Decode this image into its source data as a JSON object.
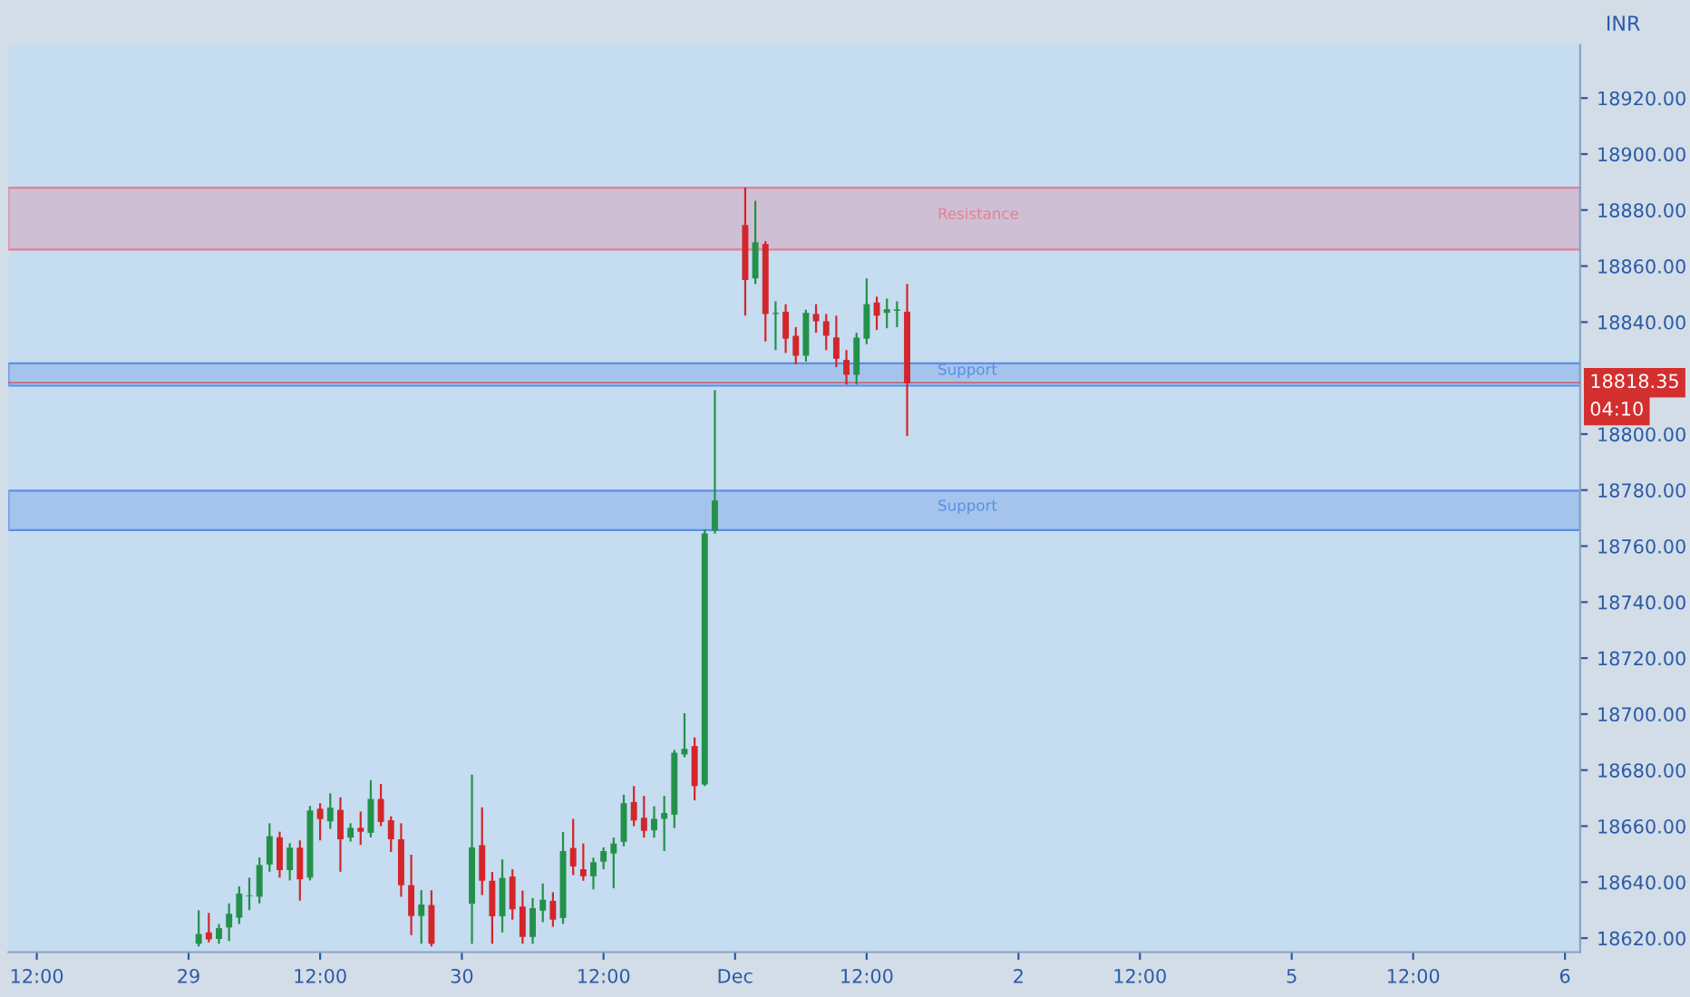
{
  "chart_data": {
    "type": "candlestick",
    "ylabel": "INR",
    "categories": [
      "12:00",
      null,
      null,
      null,
      null,
      null,
      null,
      null,
      null,
      null,
      null,
      null,
      null,
      null,
      null,
      "29",
      null,
      null,
      null,
      null,
      null,
      null,
      null,
      null,
      null,
      null,
      null,
      null,
      "12:00",
      null,
      null,
      null,
      null,
      null,
      null,
      null,
      null,
      null,
      null,
      null,
      null,
      null,
      "30",
      null,
      null,
      null,
      null,
      null,
      null,
      null,
      null,
      null,
      null,
      null,
      null,
      null,
      "12:00",
      null,
      null,
      null,
      null,
      null,
      null,
      null,
      null,
      null,
      null,
      null,
      null,
      "Dec",
      null,
      null,
      null,
      null,
      null,
      null,
      null,
      null,
      null,
      null,
      null,
      null,
      "12:00",
      null,
      null,
      null,
      null,
      null,
      null,
      null,
      null,
      null,
      null,
      null,
      null,
      null,
      null,
      "2",
      null,
      null,
      null,
      null,
      null,
      null,
      null,
      null,
      null,
      null,
      null,
      "12:00",
      null,
      null,
      null,
      null,
      null,
      null,
      null,
      null,
      null,
      null,
      null,
      null,
      null,
      null,
      "5",
      null,
      null,
      null,
      null,
      null,
      null,
      null,
      null,
      null,
      null,
      null,
      "12:00",
      null,
      null,
      null,
      null,
      null,
      null,
      null,
      null,
      null,
      null,
      null,
      null,
      null,
      null,
      "6"
    ],
    "ohlc": [
      null,
      null,
      null,
      null,
      null,
      null,
      null,
      null,
      null,
      null,
      null,
      null,
      null,
      null,
      null,
      null,
      [
        18618,
        18630,
        18617,
        18621.5
      ],
      [
        18622,
        18629,
        18618.5,
        18619.5
      ],
      [
        18619.7,
        18625,
        18618,
        18623.6
      ],
      [
        18623.8,
        18632.4,
        18619,
        18628.7
      ],
      [
        18627.3,
        18638.5,
        18625,
        18635.9
      ],
      [
        18635,
        18641.6,
        18630,
        18635.3
      ],
      [
        18634.8,
        18648.8,
        18632.4,
        18646.1
      ],
      [
        18646.3,
        18661,
        18643.7,
        18656.4
      ],
      [
        18656,
        18658,
        18641.6,
        18644.3
      ],
      [
        18644.3,
        18653.9,
        18640.6,
        18652.3
      ],
      [
        18652.3,
        18654.9,
        18633.4,
        18641
      ],
      [
        18641.6,
        18667.2,
        18640.6,
        18665.6
      ],
      [
        18666.2,
        18668.2,
        18654.9,
        18662.5
      ],
      [
        18661.7,
        18671.7,
        18659,
        18666.6
      ],
      [
        18665.8,
        18670.3,
        18643.7,
        18655.3
      ],
      [
        18655.9,
        18661,
        18654.5,
        18659.4
      ],
      [
        18659.4,
        18665.2,
        18653.3,
        18658
      ],
      [
        18657.6,
        18676.4,
        18656,
        18669.7
      ],
      [
        18669.7,
        18675,
        18660,
        18661.5
      ],
      [
        18662.1,
        18663.5,
        18650.8,
        18655.3
      ],
      [
        18655.3,
        18661,
        18634.8,
        18638.9
      ],
      [
        18638.9,
        18649.8,
        18621.1,
        18627.9
      ],
      [
        18627.9,
        18637.1,
        18618,
        18632
      ],
      [
        18631.8,
        18637.1,
        18617,
        18618
      ],
      null,
      null,
      null,
      [
        18632.3,
        18678.4,
        18618,
        18652.4
      ],
      [
        18653.2,
        18666.7,
        18635.4,
        18640.5
      ],
      [
        18640.5,
        18643.6,
        18618,
        18627.8
      ],
      [
        18627.8,
        18648.1,
        18622,
        18641.5
      ],
      [
        18642,
        18644.6,
        18626.6,
        18630.3
      ],
      [
        18631.3,
        18637,
        18618,
        18620.4
      ],
      [
        18620.4,
        18634.3,
        18618,
        18630.7
      ],
      [
        18629.8,
        18639.5,
        18625.7,
        18633.7
      ],
      [
        18633.3,
        18636.4,
        18624.1,
        18626.6
      ],
      [
        18627.2,
        18657.9,
        18625.1,
        18651.1
      ],
      [
        18652.2,
        18662.6,
        18642.5,
        18645.6
      ],
      [
        18644.6,
        18653.8,
        18640.5,
        18642.1
      ],
      [
        18642.1,
        18648.7,
        18637.4,
        18647.1
      ],
      [
        18647.3,
        18652.4,
        18644.6,
        18651.1
      ],
      [
        18650.2,
        18655.9,
        18637.8,
        18653.8
      ],
      [
        18654.4,
        18671.2,
        18652.8,
        18668.2
      ],
      [
        18668.6,
        18674.3,
        18660,
        18662
      ],
      [
        18663,
        18670.8,
        18655.9,
        18658.3
      ],
      [
        18658.5,
        18667.1,
        18655.9,
        18662.6
      ],
      [
        18662.6,
        18670.8,
        18651.1,
        18664.7
      ],
      [
        18664.1,
        18687.2,
        18659.3,
        18686.2
      ],
      [
        18685.6,
        18700.3,
        18684.6,
        18687.6
      ],
      [
        18688.6,
        18691.7,
        18669.2,
        18674.3
      ],
      [
        18674.9,
        18765.9,
        18674.3,
        18764.5
      ],
      [
        18765.5,
        18815.7,
        18764.5,
        18776.3
      ],
      null,
      null,
      [
        18874.7,
        18888,
        18842.3,
        18855
      ],
      [
        18855.6,
        18883.3,
        18853.6,
        18868.5
      ],
      [
        18867.9,
        18868.9,
        18833.1,
        18842.9
      ],
      [
        18842.9,
        18847.4,
        18830,
        18843.3
      ],
      [
        18843.7,
        18846.4,
        18829,
        18834.1
      ],
      [
        18835.1,
        18838.2,
        18824.9,
        18828
      ],
      [
        18828,
        18844.4,
        18825.9,
        18843.3
      ],
      [
        18842.9,
        18846.4,
        18836.2,
        18840.3
      ],
      [
        18840.3,
        18842.9,
        18830,
        18835.1
      ],
      [
        18834.5,
        18842.3,
        18823.9,
        18826.9
      ],
      [
        18826.5,
        18830,
        18817.7,
        18821.2
      ],
      [
        18821.2,
        18836.2,
        18817.7,
        18834.5
      ],
      [
        18834.1,
        18855.6,
        18832.1,
        18846.4
      ],
      [
        18847,
        18849.1,
        18837.2,
        18842.3
      ],
      [
        18843.3,
        18848.4,
        18837.8,
        18844.6
      ],
      [
        18844,
        18847.4,
        18838.2,
        18844.5
      ],
      [
        18843.7,
        18853.6,
        18799.3,
        18818.1
      ],
      null,
      null,
      null,
      null,
      null,
      null,
      null,
      null,
      null,
      null,
      null,
      null,
      null,
      null,
      null,
      null,
      null,
      null,
      null,
      null,
      null,
      null,
      null,
      null,
      null,
      null,
      null,
      null,
      null,
      null,
      null,
      null,
      null,
      null,
      null,
      null,
      null,
      null,
      null,
      null,
      null,
      null,
      null,
      null,
      null,
      null,
      null,
      null,
      null,
      null,
      null,
      null,
      null,
      null,
      null,
      null,
      null,
      null,
      null,
      null,
      null,
      null,
      null,
      null,
      null
    ],
    "ylim": [
      18615,
      18939
    ],
    "yticks": [
      {
        "value": 18620,
        "label": "18620.00"
      },
      {
        "value": 18640,
        "label": "18640.00"
      },
      {
        "value": 18660,
        "label": "18660.00"
      },
      {
        "value": 18680,
        "label": "18680.00"
      },
      {
        "value": 18700,
        "label": "18700.00"
      },
      {
        "value": 18720,
        "label": "18720.00"
      },
      {
        "value": 18740,
        "label": "18740.00"
      },
      {
        "value": 18760,
        "label": "18760.00"
      },
      {
        "value": 18780,
        "label": "18780.00"
      },
      {
        "value": 18800,
        "label": "18800.00"
      },
      {
        "value": 18840,
        "label": "18840.00"
      },
      {
        "value": 18860,
        "label": "18860.00"
      },
      {
        "value": 18880,
        "label": "18880.00"
      },
      {
        "value": 18900,
        "label": "18900.00"
      },
      {
        "value": 18920,
        "label": "18920.00"
      }
    ],
    "bands": [
      {
        "axis": "y",
        "from": 18865.9,
        "to": 18888,
        "label": "Resistance",
        "color": "#e57f94"
      },
      {
        "axis": "y",
        "from": 18817.3,
        "to": 18825.3,
        "label": "Support",
        "color": "#5b8ee6"
      },
      {
        "axis": "y",
        "from": 18765.7,
        "to": 18779.8,
        "label": "Support",
        "color": "#5b8ee6"
      }
    ],
    "ref_lines": [
      {
        "axis": "y",
        "value": 18818.35,
        "label": "18818.35",
        "color": "#d32f2f"
      }
    ],
    "annotations": [
      "04:10"
    ],
    "grid": false,
    "legend": false
  }
}
